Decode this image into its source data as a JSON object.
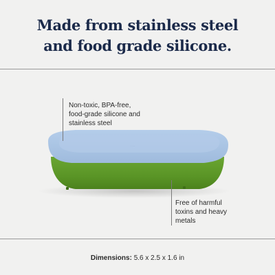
{
  "headline": {
    "line1": "Made from stainless steel",
    "line2": "and food grade silicone."
  },
  "callouts": {
    "left": {
      "line1": "Non-toxic, BPA-free,",
      "line2": "food-grade silicone and",
      "line3": "stainless steel"
    },
    "right": {
      "line1": "Free of harmful",
      "line2": "toxins and heavy",
      "line3": "metals"
    }
  },
  "dimensions": {
    "label": "Dimensions:",
    "value": "5.6 x 2.5 x 1.6 in"
  },
  "colors": {
    "background": "#f1f1f0",
    "headline": "#1b2a4a",
    "lid": "#a8c3e2",
    "base": "#5e9a2a"
  },
  "product": {
    "icon": "food-container-with-lid"
  }
}
